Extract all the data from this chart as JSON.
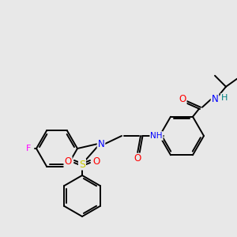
{
  "bg_color": "#e8e8e8",
  "bond_color": "#000000",
  "atom_colors": {
    "F": "#ff00ff",
    "N": "#0000ff",
    "O": "#ff0000",
    "S": "#cccc00",
    "H": "#008080",
    "C": "#000000"
  }
}
